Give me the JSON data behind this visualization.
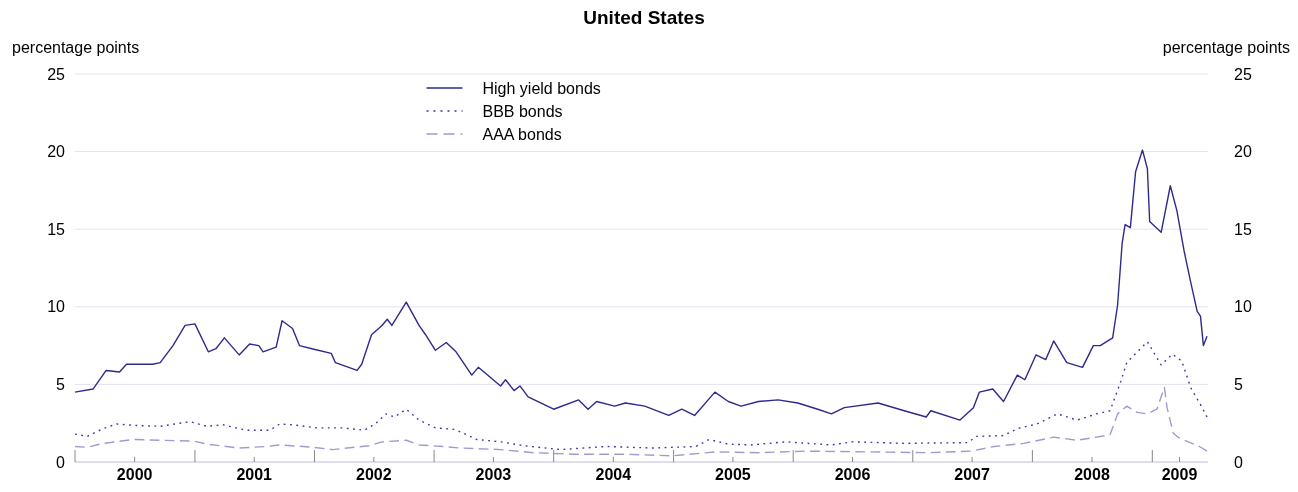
{
  "chart_data": {
    "type": "line",
    "title": "United States",
    "ylabel": "percentage points",
    "y2label": "percentage points",
    "xlim": [
      "2000-01-01",
      "2009-06-20"
    ],
    "xticks": [
      {
        "value": "2000-01-01",
        "label": null
      },
      {
        "value": "2000-07-01",
        "label": "2000"
      },
      {
        "value": "2001-01-01",
        "label": null
      },
      {
        "value": "2001-07-01",
        "label": "2001"
      },
      {
        "value": "2002-01-01",
        "label": null
      },
      {
        "value": "2002-07-01",
        "label": "2002"
      },
      {
        "value": "2003-01-01",
        "label": null
      },
      {
        "value": "2003-07-01",
        "label": "2003"
      },
      {
        "value": "2004-01-01",
        "label": null
      },
      {
        "value": "2004-07-01",
        "label": "2004"
      },
      {
        "value": "2005-01-01",
        "label": null
      },
      {
        "value": "2005-07-01",
        "label": "2005"
      },
      {
        "value": "2006-01-01",
        "label": null
      },
      {
        "value": "2006-07-01",
        "label": "2006"
      },
      {
        "value": "2007-01-01",
        "label": null
      },
      {
        "value": "2007-07-01",
        "label": "2007"
      },
      {
        "value": "2008-01-01",
        "label": null
      },
      {
        "value": "2008-07-01",
        "label": "2008"
      },
      {
        "value": "2009-01-01",
        "label": null
      },
      {
        "value": "2009-03-25",
        "label": "2009"
      }
    ],
    "ylim": [
      0,
      25
    ],
    "yticks": [
      0,
      5,
      10,
      15,
      20,
      25
    ],
    "y2lim": [
      0,
      25
    ],
    "y2ticks": [
      0,
      5,
      10,
      15,
      20,
      25
    ],
    "grid": "y",
    "legend": "top",
    "series": [
      {
        "name": "High yield bonds",
        "color": "#2e2a8c",
        "line_style": "solid",
        "x": [
          "2000-01-01",
          "2000-02-25",
          "2000-04-05",
          "2000-05-16",
          "2000-06-06",
          "2000-08-25",
          "2000-09-17",
          "2000-10-26",
          "2000-12-02",
          "2001-01-01",
          "2001-02-11",
          "2001-03-06",
          "2001-04-01",
          "2001-05-16",
          "2001-06-17",
          "2001-07-15",
          "2001-07-28",
          "2001-09-06",
          "2001-09-24",
          "2001-10-26",
          "2001-11-16",
          "2001-12-24",
          "2002-02-21",
          "2002-03-06",
          "2002-05-11",
          "2002-05-25",
          "2002-06-24",
          "2002-07-26",
          "2002-08-11",
          "2002-08-25",
          "2002-10-08",
          "2002-11-16",
          "2002-12-06",
          "2003-01-05",
          "2003-02-07",
          "2003-03-09",
          "2003-04-26",
          "2003-05-16",
          "2003-07-23",
          "2003-08-07",
          "2003-09-02",
          "2003-09-20",
          "2003-10-15",
          "2004-01-01",
          "2004-03-17",
          "2004-04-15",
          "2004-05-11",
          "2004-07-05",
          "2004-08-07",
          "2004-10-05",
          "2004-12-17",
          "2005-01-26",
          "2005-03-06",
          "2005-05-07",
          "2005-06-17",
          "2005-07-26",
          "2005-09-17",
          "2005-11-16",
          "2006-01-15",
          "2006-03-17",
          "2006-04-28",
          "2006-06-06",
          "2006-09-17",
          "2006-12-06",
          "2007-02-11",
          "2007-02-25",
          "2007-05-25",
          "2007-07-05",
          "2007-07-23",
          "2007-09-02",
          "2007-10-05",
          "2007-11-16",
          "2007-12-09",
          "2008-01-12",
          "2008-02-11",
          "2008-03-06",
          "2008-04-15",
          "2008-06-02",
          "2008-07-05",
          "2008-07-26",
          "2008-09-02",
          "2008-09-17",
          "2008-10-01",
          "2008-10-10",
          "2008-10-26",
          "2008-11-11",
          "2008-12-02",
          "2008-12-17",
          "2008-12-24",
          "2009-01-28",
          "2009-02-25",
          "2009-03-17",
          "2009-04-08",
          "2009-04-28",
          "2009-05-18",
          "2009-05-28",
          "2009-06-06",
          "2009-06-17"
        ],
        "values": [
          4.5,
          4.7,
          5.9,
          5.8,
          6.3,
          6.3,
          6.4,
          7.5,
          8.8,
          8.9,
          7.1,
          7.3,
          8.0,
          6.9,
          7.6,
          7.5,
          7.1,
          7.4,
          9.1,
          8.6,
          7.5,
          7.3,
          7.0,
          6.4,
          5.9,
          6.3,
          8.2,
          8.8,
          9.2,
          8.8,
          10.3,
          8.8,
          8.2,
          7.2,
          7.7,
          7.1,
          5.6,
          6.1,
          4.9,
          5.3,
          4.6,
          4.9,
          4.2,
          3.4,
          4.0,
          3.4,
          3.9,
          3.6,
          3.8,
          3.6,
          3.0,
          3.4,
          3.0,
          4.5,
          3.9,
          3.6,
          3.9,
          4.0,
          3.8,
          3.4,
          3.1,
          3.5,
          3.8,
          3.3,
          2.9,
          3.3,
          2.7,
          3.5,
          4.5,
          4.7,
          3.9,
          5.6,
          5.3,
          6.9,
          6.6,
          7.8,
          6.4,
          6.1,
          7.5,
          7.5,
          8.0,
          10.1,
          14.1,
          15.3,
          15.1,
          18.7,
          20.1,
          18.9,
          15.5,
          14.8,
          17.8,
          16.2,
          13.6,
          11.6,
          9.7,
          9.4,
          7.5,
          8.1
        ]
      },
      {
        "name": "BBB bonds",
        "color": "#3d35a8",
        "line_style": "dotted",
        "x": [
          "2000-01-01",
          "2000-02-07",
          "2000-03-27",
          "2000-05-07",
          "2000-07-08",
          "2000-09-17",
          "2000-12-17",
          "2001-02-07",
          "2001-03-27",
          "2001-06-06",
          "2001-08-18",
          "2001-09-17",
          "2001-10-26",
          "2002-01-08",
          "2002-03-27",
          "2002-06-02",
          "2002-07-05",
          "2002-08-07",
          "2002-09-02",
          "2002-10-08",
          "2002-11-16",
          "2003-01-05",
          "2003-03-06",
          "2003-05-11",
          "2003-07-23",
          "2003-10-01",
          "2004-01-22",
          "2004-06-10",
          "2004-10-30",
          "2005-03-10",
          "2005-04-19",
          "2005-06-17",
          "2005-08-25",
          "2005-12-09",
          "2006-04-28",
          "2006-07-01",
          "2006-12-06",
          "2007-06-17",
          "2007-07-15",
          "2007-10-05",
          "2007-11-16",
          "2008-01-15",
          "2008-03-17",
          "2008-05-17",
          "2008-07-15",
          "2008-08-25",
          "2008-09-27",
          "2008-10-15",
          "2008-11-16",
          "2008-12-17",
          "2009-01-28",
          "2009-03-03",
          "2009-04-01",
          "2009-04-28",
          "2009-05-28",
          "2009-06-17"
        ],
        "values": [
          1.8,
          1.65,
          2.15,
          2.45,
          2.35,
          2.3,
          2.6,
          2.3,
          2.4,
          2.05,
          2.05,
          2.45,
          2.4,
          2.2,
          2.2,
          2.05,
          2.45,
          3.1,
          2.9,
          3.4,
          2.7,
          2.2,
          2.1,
          1.45,
          1.3,
          1.05,
          0.8,
          1.0,
          0.9,
          1.0,
          1.45,
          1.15,
          1.1,
          1.3,
          1.1,
          1.3,
          1.2,
          1.25,
          1.65,
          1.7,
          2.15,
          2.45,
          3.1,
          2.7,
          3.1,
          3.3,
          5.2,
          6.4,
          7.1,
          7.75,
          6.25,
          6.95,
          6.5,
          4.8,
          3.7,
          2.9
        ]
      },
      {
        "name": "AAA bonds",
        "color": "#a09ad0",
        "line_style": "dashed",
        "x": [
          "2000-01-01",
          "2000-02-07",
          "2000-03-27",
          "2000-06-28",
          "2000-09-17",
          "2000-12-28",
          "2001-02-07",
          "2001-05-16",
          "2001-08-07",
          "2001-09-17",
          "2001-12-28",
          "2002-02-25",
          "2002-06-17",
          "2002-07-26",
          "2002-10-08",
          "2002-11-16",
          "2003-01-26",
          "2003-03-21",
          "2003-07-23",
          "2003-10-30",
          "2004-03-03",
          "2004-08-07",
          "2004-12-28",
          "2005-05-07",
          "2005-09-17",
          "2006-02-07",
          "2006-08-25",
          "2007-02-18",
          "2007-06-28",
          "2007-09-06",
          "2007-12-06",
          "2008-03-06",
          "2008-05-17",
          "2008-08-25",
          "2008-09-06",
          "2008-09-17",
          "2008-10-15",
          "2008-11-16",
          "2008-12-17",
          "2009-01-15",
          "2009-02-07",
          "2009-02-15",
          "2009-03-06",
          "2009-03-24",
          "2009-05-25",
          "2009-06-17"
        ],
        "values": [
          1.0,
          0.95,
          1.2,
          1.45,
          1.4,
          1.35,
          1.15,
          0.9,
          1.0,
          1.1,
          0.95,
          0.8,
          1.05,
          1.3,
          1.4,
          1.1,
          1.0,
          0.9,
          0.8,
          0.6,
          0.5,
          0.5,
          0.4,
          0.65,
          0.6,
          0.7,
          0.65,
          0.6,
          0.7,
          1.0,
          1.2,
          1.6,
          1.4,
          1.75,
          2.45,
          3.1,
          3.6,
          3.2,
          3.1,
          3.4,
          4.8,
          3.5,
          1.85,
          1.55,
          1.0,
          0.7
        ]
      }
    ]
  }
}
